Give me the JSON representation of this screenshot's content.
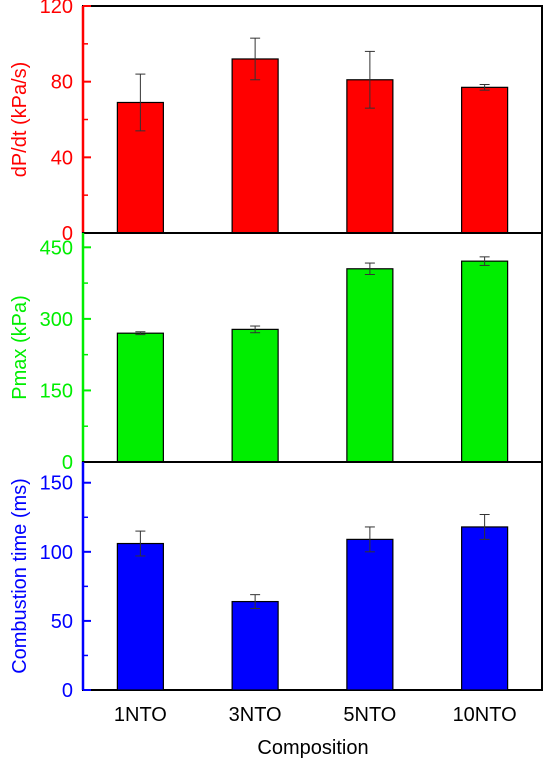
{
  "chart_data": {
    "type": "bar",
    "categories": [
      "1NTO",
      "3NTO",
      "5NTO",
      "10NTO"
    ],
    "xlabel": "Composition",
    "panels": [
      {
        "ylabel": "dP/dt (kPa/s)",
        "color": "#ff0000",
        "ylim": [
          0,
          120
        ],
        "yticks": [
          0,
          40,
          80,
          120
        ],
        "values": [
          69,
          92,
          81,
          77
        ],
        "errors": [
          15,
          11,
          15,
          1.5
        ]
      },
      {
        "ylabel": "Pmax (kPa)",
        "color": "#00ee00",
        "ylim": [
          0,
          480
        ],
        "yticks": [
          0,
          150,
          300,
          450
        ],
        "values": [
          270,
          278,
          405,
          421
        ],
        "errors": [
          3,
          7,
          12,
          9
        ]
      },
      {
        "ylabel": "Combustion time (ms)",
        "color": "#0000ff",
        "ylim": [
          0,
          165
        ],
        "yticks": [
          0,
          50,
          100,
          150
        ],
        "values": [
          106,
          64,
          109,
          118
        ],
        "errors": [
          9,
          5,
          9,
          9
        ]
      }
    ]
  }
}
